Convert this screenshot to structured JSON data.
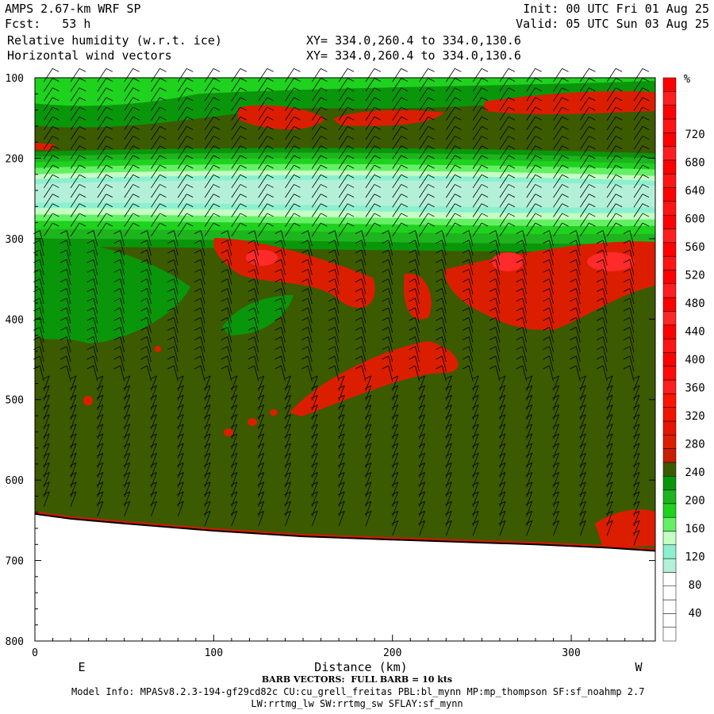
{
  "header": {
    "model": "AMPS 2.67-km WRF SP",
    "fcst": "Fcst:   53 h",
    "init": "Init: 00 UTC Fri 01 Aug 25",
    "valid": "Valid: 05 UTC Sun 03 Aug 25",
    "field1": "Relative humidity (w.r.t. ice)",
    "field2": "Horizontal wind vectors",
    "xy1": "XY= 334.0,260.4 to 334.0,130.6",
    "xy2": "XY= 334.0,260.4 to 334.0,130.6"
  },
  "footer": {
    "barb": "BARB VECTORS:  FULL BARB = 10 kts",
    "info1": "Model Info: MPASv8.2.3-194-gf29cd82c CU:cu_grell_freitas PBL:bl_mynn MP:mp_thompson SF:sf_noahmp 2.7",
    "info2": "LW:rrtmg_lw SW:rrtmg_sw SFLAY:sf_mynn"
  },
  "chart_data": {
    "type": "heatmap",
    "xlabel": "Distance (km)",
    "ylabel": "",
    "x_ticks": [
      0,
      100,
      200,
      300
    ],
    "y_ticks": [
      100,
      200,
      300,
      400,
      500,
      600,
      700,
      800
    ],
    "xlim": [
      0,
      347
    ],
    "ylim": [
      800,
      100
    ],
    "x_direction_labels": {
      "left": "E",
      "right": "W"
    },
    "colorbar": {
      "unit": "%",
      "ticks": [
        40,
        80,
        120,
        160,
        200,
        240,
        280,
        320,
        360,
        400,
        440,
        480,
        520,
        560,
        600,
        640,
        680,
        720
      ],
      "colors_low_to_high": [
        "#ffffff",
        "#ffffff",
        "#ffffff",
        "#ffffff",
        "#ffffff",
        "#b4f0d8",
        "#8cf0d0",
        "#c4ffc4",
        "#64f064",
        "#1ed21e",
        "#1eb41e",
        "#0a960a",
        "#3c5a00",
        "#c81e00",
        "#dc1e00",
        "#e61400",
        "#f01400",
        "#ff1400",
        "#ff1e1e",
        "#ff0a0a",
        "#ff0000",
        "#ff1414",
        "#ff0000",
        "#ff2828",
        "#ff0000",
        "#ff1e1e",
        "#ff0000",
        "#ff1414",
        "#ff0000",
        "#ff1e1e",
        "#ff0000",
        "#ff1414",
        "#ff0000",
        "#ff1414",
        "#ff0000",
        "#ff1e1e",
        "#ff0000",
        "#ff1414",
        "#ff0000",
        "#ff1e1e",
        "#ff0000"
      ]
    },
    "surface_pressure_profile": [
      [
        0,
        642
      ],
      [
        20,
        648
      ],
      [
        50,
        654
      ],
      [
        100,
        663
      ],
      [
        150,
        670
      ],
      [
        200,
        674
      ],
      [
        240,
        677
      ],
      [
        280,
        680
      ],
      [
        320,
        684
      ],
      [
        347,
        688
      ]
    ],
    "field_regions": [
      {
        "level": "high",
        "desc": "red patches",
        "centers": [
          [
            120,
            148
          ],
          [
            210,
            150
          ],
          [
            300,
            128
          ],
          [
            130,
            335
          ],
          [
            230,
            365
          ],
          [
            280,
            345
          ],
          [
            190,
            475
          ]
        ]
      },
      {
        "level": "moist",
        "desc": "green band",
        "p_range": [
          200,
          290
        ]
      },
      {
        "level": "saturated",
        "desc": "pale cyan core",
        "p_range": [
          228,
          258
        ]
      }
    ],
    "barb_columns_km": [
      5,
      20,
      35,
      50,
      65,
      80,
      95,
      110,
      125,
      140,
      155,
      170,
      185,
      200,
      215,
      230,
      245,
      260,
      275,
      290,
      305,
      320,
      335
    ]
  }
}
